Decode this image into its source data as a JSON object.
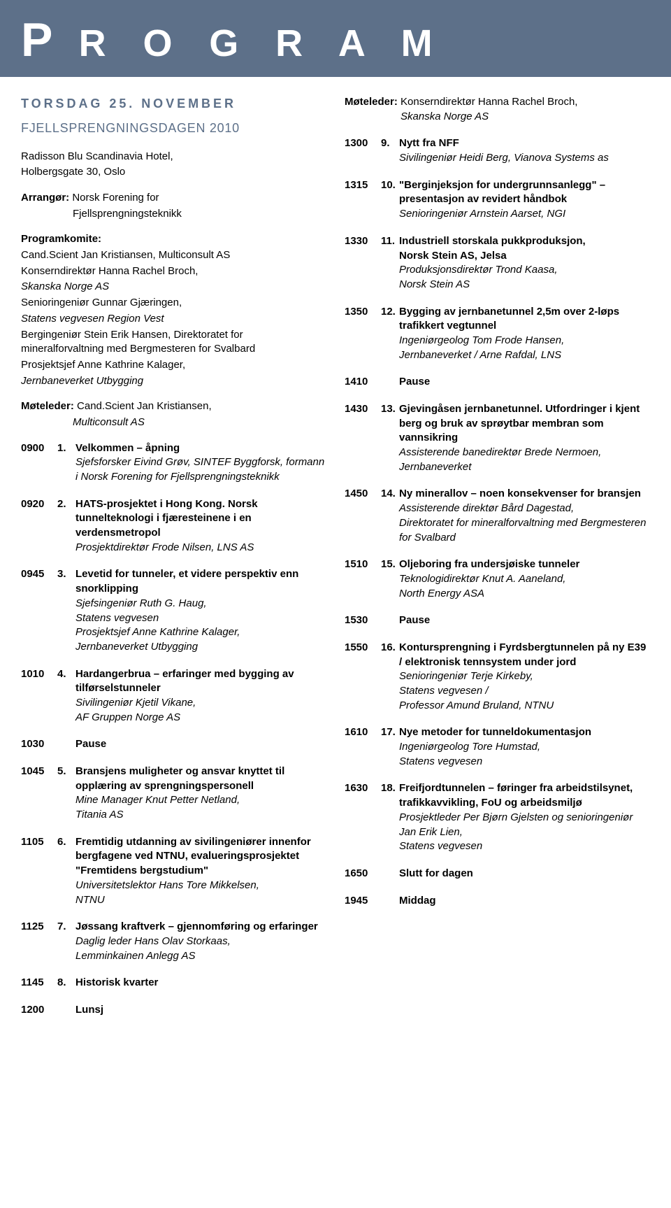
{
  "header": "P R O G R A M",
  "left": {
    "day_title": "TORSDAG 25. NOVEMBER",
    "sub_title": "FJELLSPRENGNINGSDAGEN 2010",
    "venue_line1": "Radisson Blu Scandinavia Hotel,",
    "venue_line2": "Holbergsgate 30, Oslo",
    "arrangor_label": "Arrangør:",
    "arrangor_line1": "Norsk Forening for",
    "arrangor_line2": "Fjellsprengningsteknikk",
    "programkomite_label": "Programkomite:",
    "committee": [
      "Cand.Scient Jan Kristiansen, Multiconsult AS",
      "Konserndirektør Hanna Rachel Broch,",
      "Skanska Norge AS",
      "Senioringeniør Gunnar Gjæringen,",
      "Statens vegvesen Region Vest",
      "Bergingeniør Stein Erik Hansen, Direktoratet for mineralforvaltning med Bergmesteren for Svalbard",
      "Prosjektsjef Anne Kathrine Kalager,",
      "Jernbaneverket Utbygging"
    ],
    "moderator_label": "Møteleder:",
    "moderator_value1": "Cand.Scient Jan Kristiansen,",
    "moderator_value2": "Multiconsult AS",
    "items": [
      {
        "time": "0900",
        "num": "1.",
        "title": "Velkommen – åpning",
        "speaker": "Sjefsforsker Eivind Grøv, SINTEF Byggforsk, formann i Norsk Forening  for Fjellsprengningsteknikk"
      },
      {
        "time": "0920",
        "num": "2.",
        "title": "HATS-prosjektet i Hong Kong. Norsk tunnelteknologi i fjæresteinene i en verdensmetropol",
        "speaker": "Prosjektdirektør Frode Nilsen, LNS AS"
      },
      {
        "time": "0945",
        "num": "3.",
        "title": "Levetid for tunneler, et videre perspektiv enn snorklipping",
        "speaker": "Sjefsingeniør Ruth G. Haug,\nStatens vegvesen\nProsjektsjef Anne Kathrine Kalager,\nJernbaneverket Utbygging"
      },
      {
        "time": "1010",
        "num": "4.",
        "title": "Hardangerbrua – erfaringer med bygging av tilførselstunneler",
        "speaker": "Sivilingeniør Kjetil Vikane,\nAF Gruppen Norge AS"
      },
      {
        "time": "1030",
        "num": "",
        "title": "Pause",
        "speaker": ""
      },
      {
        "time": "1045",
        "num": "5.",
        "title": "Bransjens muligheter og ansvar knyttet til opplæring av sprengningspersonell",
        "speaker": "Mine Manager Knut Petter Netland,\nTitania AS"
      },
      {
        "time": "1105",
        "num": "6.",
        "title": "Fremtidig utdanning av sivilingeniører innenfor bergfagene ved NTNU, evalueringsprosjektet \"Fremtidens bergstudium\"",
        "speaker": "Universitetslektor Hans Tore Mikkelsen,\nNTNU"
      },
      {
        "time": "1125",
        "num": "7.",
        "title": "Jøssang kraftverk – gjennomføring og erfaringer",
        "speaker": "Daglig leder Hans Olav Storkaas,\nLemminkainen Anlegg AS"
      },
      {
        "time": "1145",
        "num": "8.",
        "title": "Historisk kvarter",
        "speaker": ""
      },
      {
        "time": "1200",
        "num": "",
        "title": "Lunsj",
        "speaker": ""
      }
    ]
  },
  "right": {
    "moderator_label": "Møteleder:",
    "moderator_value1": "Konserndirektør Hanna Rachel Broch,",
    "moderator_value2": "Skanska Norge AS",
    "items": [
      {
        "time": "1300",
        "num": "9.",
        "title": "Nytt fra NFF",
        "speaker": "Sivilingeniør Heidi Berg, Vianova Systems as"
      },
      {
        "time": "1315",
        "num": "10.",
        "title": "\"Berginjeksjon for undergrunnsanlegg\" – presentasjon av revidert håndbok",
        "speaker": "Senioringeniør Arnstein Aarset, NGI"
      },
      {
        "time": "1330",
        "num": "11.",
        "title": "Industriell storskala pukkproduksjon,\nNorsk Stein AS, Jelsa",
        "speaker": "Produksjonsdirektør Trond Kaasa,\nNorsk Stein AS"
      },
      {
        "time": "1350",
        "num": "12.",
        "title": "Bygging av jernbanetunnel 2,5m over 2-løps trafikkert vegtunnel",
        "speaker": "Ingeniørgeolog Tom Frode Hansen,\nJernbaneverket / Arne Rafdal, LNS"
      },
      {
        "time": "1410",
        "num": "",
        "title": "Pause",
        "speaker": ""
      },
      {
        "time": "1430",
        "num": "13.",
        "title": "Gjevingåsen jernbanetunnel. Utfordringer i kjent berg og bruk av sprøytbar membran som vannsikring",
        "speaker": "Assisterende banedirektør Brede Nermoen,\nJernbaneverket"
      },
      {
        "time": "1450",
        "num": "14.",
        "title": "Ny minerallov – noen konsekvenser for bransjen",
        "speaker": "Assisterende direktør Bård Dagestad,\nDirektoratet for mineralforvaltning med Bergmesteren for Svalbard"
      },
      {
        "time": "1510",
        "num": "15.",
        "title": "Oljeboring fra undersjøiske tunneler",
        "speaker": "Teknologidirektør Knut A. Aaneland,\nNorth Energy ASA"
      },
      {
        "time": "1530",
        "num": "",
        "title": "Pause",
        "speaker": ""
      },
      {
        "time": "1550",
        "num": "16.",
        "title": "Kontursprengning i Fyrdsbergtunnelen på ny E39 / elektronisk tennsystem under jord",
        "speaker": "Senioringeniør Terje Kirkeby,\nStatens vegvesen /\nProfessor Amund Bruland, NTNU"
      },
      {
        "time": "1610",
        "num": "17.",
        "title": "Nye metoder for tunneldokumentasjon",
        "speaker": "Ingeniørgeolog Tore Humstad,\nStatens vegvesen"
      },
      {
        "time": "1630",
        "num": "18.",
        "title": "Freifjordtunnelen – føringer fra arbeidstilsynet, trafikkavvikling, FoU og arbeidsmiljø",
        "speaker": "Prosjektleder Per Bjørn Gjelsten og senioringeniør Jan Erik Lien,\nStatens vegvesen"
      },
      {
        "time": "1650",
        "num": "",
        "title": "Slutt for dagen",
        "speaker": ""
      },
      {
        "time": "1945",
        "num": "",
        "title": "Middag",
        "speaker": ""
      }
    ]
  }
}
